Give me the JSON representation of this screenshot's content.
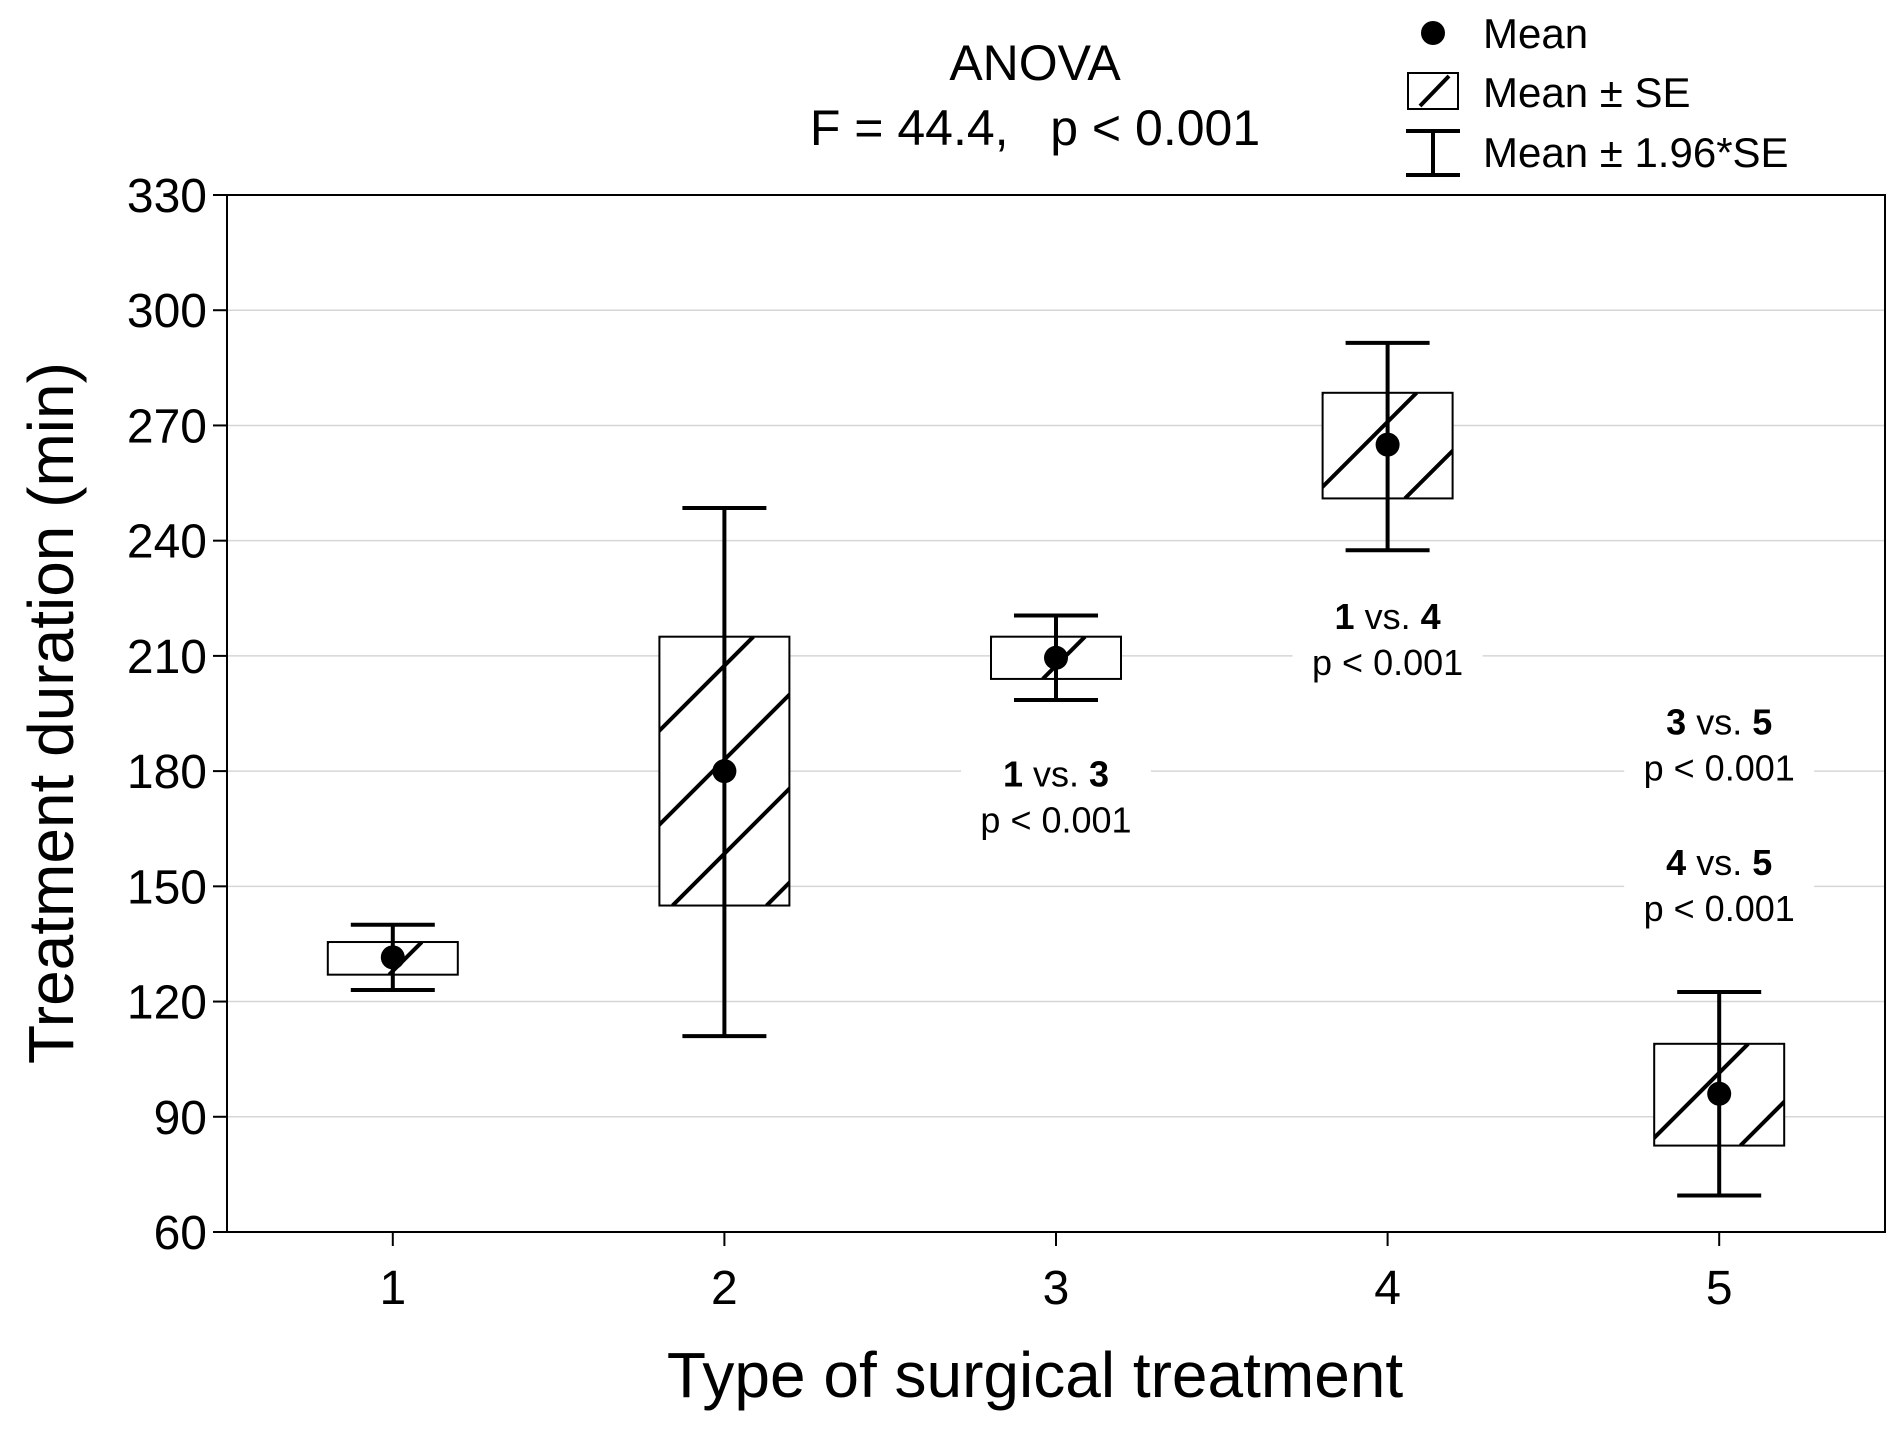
{
  "chart_data": {
    "type": "box",
    "title": "ANOVA",
    "subtitle": "F = 44.4,   p < 0.001",
    "xlabel": "Type of surgical treatment",
    "ylabel": "Treatment duration (min)",
    "categories": [
      "1",
      "2",
      "3",
      "4",
      "5"
    ],
    "ylim": [
      60,
      330
    ],
    "yticks": [
      "60",
      "90",
      "120",
      "150",
      "180",
      "210",
      "240",
      "270",
      "300",
      "330"
    ],
    "grid": true,
    "legend_position": "top-right",
    "legend": [
      {
        "symbol": "dot",
        "label": "Mean"
      },
      {
        "symbol": "hatched-box",
        "label": "Mean ± SE"
      },
      {
        "symbol": "whisker",
        "label": "Mean ± 1.96*SE"
      }
    ],
    "series": [
      {
        "category": "1",
        "mean": 131.5,
        "se_low": 127,
        "se_high": 135.5,
        "ci_low": 123,
        "ci_high": 140
      },
      {
        "category": "2",
        "mean": 180,
        "se_low": 145,
        "se_high": 215,
        "ci_low": 111,
        "ci_high": 248.5
      },
      {
        "category": "3",
        "mean": 209.5,
        "se_low": 204,
        "se_high": 215,
        "ci_low": 198.5,
        "ci_high": 220.5
      },
      {
        "category": "4",
        "mean": 265,
        "se_low": 251,
        "se_high": 278.5,
        "ci_low": 237.5,
        "ci_high": 291.5
      },
      {
        "category": "5",
        "mean": 96,
        "se_low": 82.5,
        "se_high": 109,
        "ci_low": 69.5,
        "ci_high": 122.5
      }
    ],
    "annotations": [
      {
        "a": "1",
        "vs": "vs.",
        "b": "3",
        "p": "p < 0.001",
        "x_category": "3",
        "y": 176
      },
      {
        "a": "1",
        "vs": "vs.",
        "b": "4",
        "p": "p < 0.001",
        "x_category": "4",
        "y": 217
      },
      {
        "a": "3",
        "vs": "vs.",
        "b": "5",
        "p": "p < 0.001",
        "x_category": "5",
        "y": 189.5
      },
      {
        "a": "4",
        "vs": "vs.",
        "b": "5",
        "p": "p < 0.001",
        "x_category": "5",
        "y": 153
      }
    ],
    "colors": {
      "ink": "#000000",
      "grid": "#d6d6d6",
      "background": "#ffffff"
    }
  }
}
